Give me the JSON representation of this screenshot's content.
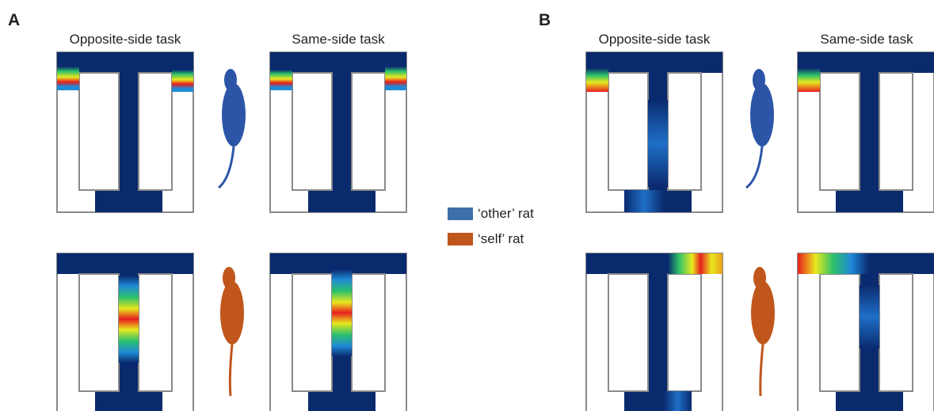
{
  "panels": [
    {
      "label": "A",
      "columns": [
        "Opposite-side task",
        "Same-side task"
      ]
    },
    {
      "label": "B",
      "columns": [
        "Opposite-side task",
        "Same-side task"
      ]
    }
  ],
  "legend": [
    "‘other’ rat",
    "‘self’ rat"
  ]
}
